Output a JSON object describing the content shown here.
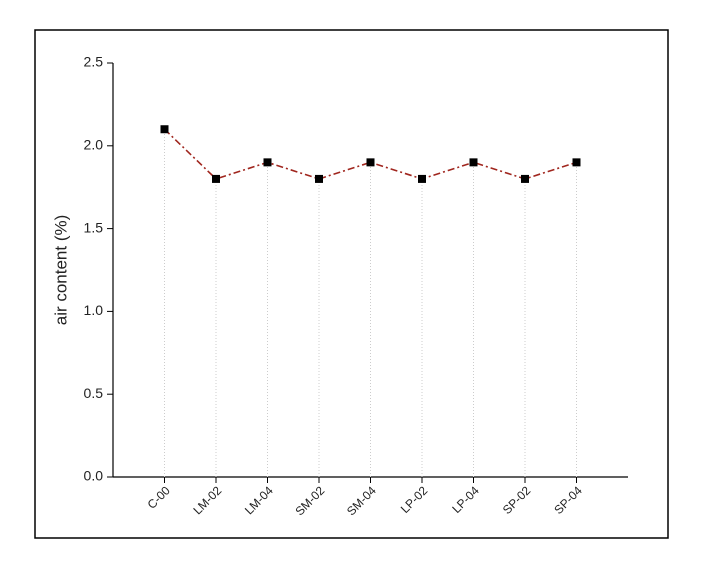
{
  "chart_data": {
    "type": "line",
    "y_label": "air content (%)",
    "categories": [
      "C-00",
      "LM-02",
      "LM-04",
      "SM-02",
      "SM-04",
      "LP-02",
      "LP-04",
      "SP-02",
      "SP-04"
    ],
    "series": [
      {
        "color": "#a0261e",
        "marker_color": "#000000",
        "values": [
          2.1,
          1.8,
          1.9,
          1.8,
          1.9,
          1.8,
          1.9,
          1.8,
          1.9
        ]
      }
    ],
    "ylim": [
      0,
      2.5
    ],
    "yticks": [
      {
        "value": 0,
        "label": "0.0"
      },
      0.5,
      {
        "value": 1,
        "label": "1.0"
      },
      1.5,
      {
        "value": 2,
        "label": "2.0"
      },
      2.5
    ],
    "grid": true
  }
}
